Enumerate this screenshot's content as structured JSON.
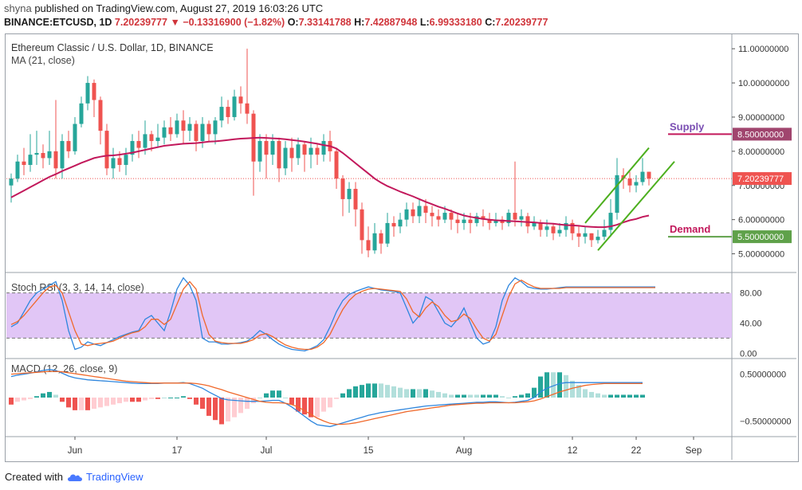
{
  "header": {
    "publisher": "shyna",
    "published_text": "published on TradingView.com, August 27, 2019 16:03:26 UTC",
    "symbol": "BINANCE:ETCUSD, 1D",
    "last_price": "7.20239777",
    "change_symbol": "▼",
    "change_text": "−0.13316900 (−1.82%)",
    "open_label": "O:",
    "open": "7.33141788",
    "high_label": "H:",
    "high": "7.42887948",
    "low_label": "L:",
    "low": "6.99333180",
    "close_label": "C:",
    "close": "7.20239777"
  },
  "footer": {
    "created_with": "Created with",
    "brand": "TradingView"
  },
  "colors": {
    "up": "#26a69a",
    "down": "#ef5350",
    "ma": "#c2185b",
    "channel": "#4caf1e",
    "supply": "#7b4fb3",
    "demand": "#c2185b",
    "supply_tag": "#a0456e",
    "demand_tag": "#5fa14a",
    "last_tag": "#ef5350",
    "rsi_k": "#2e86de",
    "rsi_d": "#f0682a",
    "rsi_band": "#e1c6f6",
    "macd_line": "#2e86de",
    "signal_line": "#f0682a",
    "hist_up_strong": "#26a69a",
    "hist_up_weak": "#b2dfdb",
    "hist_down_strong": "#ef5350",
    "hist_down_weak": "#ffcdd2"
  },
  "chart_data": [
    {
      "type": "candlestick",
      "title": "Ethereum Classic / U.S. Dollar, 1D, BINANCE",
      "indicator": "MA (21, close)",
      "y_ticks": [
        "5.00000000",
        "6.00000000",
        "7.00000000",
        "8.00000000",
        "9.00000000",
        "10.00000000",
        "11.00000000"
      ],
      "ylim": [
        4.5,
        11.4
      ],
      "last_price_tag": "7.20239777",
      "candles": [
        [
          7.0,
          7.2,
          6.5,
          7.35
        ],
        [
          7.2,
          7.7,
          7.1,
          7.9
        ],
        [
          7.7,
          7.6,
          7.3,
          8.1
        ],
        [
          7.6,
          7.9,
          7.4,
          8.5
        ],
        [
          7.9,
          7.95,
          7.6,
          8.6
        ],
        [
          7.95,
          7.8,
          7.5,
          8.2
        ],
        [
          7.8,
          8.0,
          7.6,
          8.6
        ],
        [
          8.0,
          7.5,
          7.2,
          9.5
        ],
        [
          7.5,
          8.3,
          7.2,
          8.5
        ],
        [
          8.3,
          8.0,
          7.8,
          8.6
        ],
        [
          8.0,
          8.8,
          7.9,
          9.0
        ],
        [
          8.8,
          9.4,
          8.7,
          9.6
        ],
        [
          9.4,
          10.0,
          9.2,
          10.2
        ],
        [
          10.0,
          9.5,
          9.0,
          10.1
        ],
        [
          9.5,
          8.6,
          8.2,
          9.6
        ],
        [
          8.6,
          7.5,
          7.3,
          8.8
        ],
        [
          7.5,
          7.8,
          7.2,
          8.1
        ],
        [
          7.8,
          7.6,
          7.4,
          8.0
        ],
        [
          7.6,
          7.9,
          7.3,
          8.1
        ],
        [
          7.9,
          8.3,
          7.7,
          8.5
        ],
        [
          8.3,
          8.1,
          7.8,
          8.6
        ],
        [
          8.1,
          8.5,
          7.9,
          8.9
        ],
        [
          8.5,
          8.3,
          8.0,
          8.6
        ],
        [
          8.3,
          8.4,
          8.1,
          8.8
        ],
        [
          8.4,
          8.7,
          8.2,
          8.9
        ],
        [
          8.7,
          8.5,
          8.3,
          9.0
        ],
        [
          8.5,
          8.9,
          8.4,
          9.1
        ],
        [
          8.9,
          8.6,
          8.2,
          9.2
        ],
        [
          8.6,
          8.8,
          8.3,
          9.0
        ],
        [
          8.8,
          8.3,
          8.0,
          8.9
        ],
        [
          8.3,
          8.8,
          8.1,
          9.0
        ],
        [
          8.8,
          8.5,
          8.3,
          8.9
        ],
        [
          8.5,
          8.9,
          8.2,
          9.0
        ],
        [
          8.9,
          9.3,
          8.7,
          9.6
        ],
        [
          9.3,
          9.0,
          8.8,
          9.5
        ],
        [
          9.0,
          9.6,
          8.9,
          9.8
        ],
        [
          9.6,
          9.4,
          9.1,
          9.9
        ],
        [
          9.4,
          9.1,
          8.8,
          11.0
        ],
        [
          9.1,
          7.7,
          6.7,
          9.2
        ],
        [
          7.7,
          8.3,
          7.4,
          8.5
        ],
        [
          8.3,
          7.9,
          7.2,
          8.5
        ],
        [
          7.9,
          8.3,
          7.6,
          8.5
        ],
        [
          8.3,
          7.5,
          7.1,
          8.4
        ],
        [
          7.5,
          8.1,
          7.3,
          8.3
        ],
        [
          8.1,
          7.8,
          7.4,
          8.4
        ],
        [
          7.8,
          8.2,
          7.6,
          8.4
        ],
        [
          8.2,
          7.9,
          7.4,
          8.3
        ],
        [
          7.9,
          8.1,
          7.5,
          8.4
        ],
        [
          8.1,
          7.9,
          7.6,
          8.2
        ],
        [
          7.9,
          8.3,
          7.7,
          8.5
        ],
        [
          8.3,
          8.0,
          7.7,
          8.6
        ],
        [
          8.0,
          7.2,
          6.9,
          8.1
        ],
        [
          7.2,
          6.6,
          6.1,
          7.3
        ],
        [
          6.6,
          6.9,
          6.2,
          7.1
        ],
        [
          6.9,
          6.3,
          5.8,
          7.1
        ],
        [
          6.3,
          5.4,
          5.0,
          6.5
        ],
        [
          5.4,
          5.1,
          4.9,
          5.8
        ],
        [
          5.1,
          5.6,
          5.0,
          5.9
        ],
        [
          5.6,
          5.3,
          5.0,
          5.7
        ],
        [
          5.3,
          5.9,
          5.2,
          6.2
        ],
        [
          5.9,
          5.8,
          5.5,
          6.1
        ],
        [
          5.8,
          6.0,
          5.6,
          6.2
        ],
        [
          6.0,
          6.3,
          5.8,
          6.5
        ],
        [
          6.3,
          6.1,
          5.9,
          6.5
        ],
        [
          6.1,
          6.4,
          5.9,
          6.6
        ],
        [
          6.4,
          6.2,
          5.9,
          6.6
        ],
        [
          6.2,
          6.1,
          5.8,
          6.4
        ],
        [
          6.1,
          6.0,
          5.8,
          6.3
        ],
        [
          6.0,
          6.2,
          5.9,
          6.4
        ],
        [
          6.2,
          6.0,
          5.7,
          6.3
        ],
        [
          6.0,
          5.9,
          5.6,
          6.2
        ],
        [
          5.9,
          6.0,
          5.7,
          6.2
        ],
        [
          6.0,
          5.9,
          5.6,
          6.2
        ],
        [
          5.9,
          6.1,
          5.8,
          6.2
        ],
        [
          6.1,
          6.0,
          5.8,
          6.3
        ],
        [
          6.0,
          5.9,
          5.7,
          6.2
        ],
        [
          5.9,
          6.0,
          5.8,
          6.2
        ],
        [
          6.0,
          5.9,
          5.7,
          6.1
        ],
        [
          5.9,
          6.2,
          5.8,
          6.3
        ],
        [
          6.2,
          6.0,
          5.8,
          7.7
        ],
        [
          6.0,
          6.1,
          5.8,
          6.3
        ],
        [
          6.1,
          5.8,
          5.6,
          6.2
        ],
        [
          5.8,
          5.9,
          5.7,
          6.1
        ],
        [
          5.9,
          5.7,
          5.5,
          6.0
        ],
        [
          5.7,
          5.8,
          5.5,
          6.0
        ],
        [
          5.8,
          5.6,
          5.4,
          5.9
        ],
        [
          5.6,
          5.7,
          5.5,
          5.9
        ],
        [
          5.7,
          5.9,
          5.5,
          6.1
        ],
        [
          5.9,
          5.6,
          5.4,
          6.0
        ],
        [
          5.6,
          5.5,
          5.2,
          5.8
        ],
        [
          5.5,
          5.6,
          5.3,
          5.8
        ],
        [
          5.6,
          5.4,
          5.2,
          5.6
        ],
        [
          5.4,
          5.5,
          5.3,
          5.7
        ],
        [
          5.5,
          5.7,
          5.4,
          6.0
        ],
        [
          5.7,
          6.2,
          5.5,
          6.6
        ],
        [
          6.2,
          7.3,
          6.0,
          7.8
        ],
        [
          7.3,
          7.2,
          6.9,
          7.5
        ],
        [
          7.2,
          7.0,
          6.8,
          7.4
        ],
        [
          7.0,
          7.1,
          6.8,
          7.3
        ],
        [
          7.1,
          7.4,
          7.0,
          7.8
        ],
        [
          7.4,
          7.2,
          7.0,
          7.4
        ]
      ],
      "ma21": [
        6.65,
        6.75,
        6.85,
        6.95,
        7.05,
        7.15,
        7.25,
        7.33,
        7.42,
        7.5,
        7.58,
        7.66,
        7.73,
        7.8,
        7.84,
        7.87,
        7.88,
        7.9,
        7.93,
        7.96,
        8.0,
        8.04,
        8.08,
        8.12,
        8.16,
        8.18,
        8.2,
        8.22,
        8.23,
        8.24,
        8.26,
        8.28,
        8.29,
        8.31,
        8.33,
        8.35,
        8.37,
        8.38,
        8.39,
        8.4,
        8.39,
        8.38,
        8.37,
        8.35,
        8.33,
        8.31,
        8.28,
        8.25,
        8.22,
        8.18,
        8.15,
        8.08,
        7.95,
        7.8,
        7.65,
        7.5,
        7.35,
        7.2,
        7.08,
        6.98,
        6.9,
        6.82,
        6.75,
        6.68,
        6.6,
        6.52,
        6.45,
        6.38,
        6.32,
        6.25,
        6.18,
        6.12,
        6.08,
        6.05,
        6.02,
        6.0,
        5.98,
        5.97,
        5.96,
        5.95,
        5.94,
        5.93,
        5.92,
        5.9,
        5.89,
        5.88,
        5.86,
        5.84,
        5.83,
        5.82,
        5.8,
        5.79,
        5.78,
        5.78,
        5.8,
        5.85,
        5.92,
        5.98,
        6.02,
        6.08,
        6.12
      ],
      "annotations": {
        "supply_label": "Supply",
        "supply_value": "8.50000000",
        "supply_level": 8.5,
        "demand_label": "Demand",
        "demand_value": "5.50000000",
        "demand_level": 5.5,
        "channel_upper": [
          [
            90,
            5.9
          ],
          [
            100,
            8.1
          ]
        ],
        "channel_lower": [
          [
            92,
            5.1
          ],
          [
            104,
            7.7
          ]
        ]
      }
    },
    {
      "type": "line",
      "title": "Stoch RSI (3, 3, 14, 14, close)",
      "y_ticks": [
        "0.00",
        "40.00",
        "80.00"
      ],
      "band": [
        20,
        80
      ],
      "ylim": [
        -5,
        105
      ],
      "series": [
        {
          "name": "K",
          "values": [
            35,
            40,
            55,
            70,
            80,
            85,
            90,
            95,
            70,
            30,
            5,
            8,
            15,
            12,
            10,
            14,
            18,
            22,
            25,
            28,
            30,
            45,
            50,
            40,
            30,
            55,
            85,
            100,
            90,
            70,
            20,
            15,
            15,
            12,
            12,
            13,
            14,
            16,
            22,
            30,
            25,
            18,
            12,
            8,
            5,
            4,
            3,
            6,
            10,
            18,
            35,
            55,
            70,
            78,
            82,
            85,
            88,
            86,
            84,
            83,
            82,
            80,
            60,
            40,
            50,
            75,
            70,
            55,
            40,
            35,
            45,
            60,
            40,
            20,
            12,
            15,
            35,
            70,
            90,
            100,
            95,
            88,
            86,
            85,
            85,
            86,
            87,
            88,
            88,
            88,
            88,
            88,
            88,
            88,
            88,
            88,
            88,
            88,
            88,
            88,
            88,
            88
          ]
        },
        {
          "name": "D",
          "values": [
            38,
            42,
            50,
            60,
            70,
            80,
            88,
            90,
            80,
            55,
            30,
            12,
            10,
            12,
            13,
            14,
            16,
            20,
            24,
            27,
            29,
            35,
            45,
            45,
            38,
            45,
            65,
            85,
            95,
            85,
            50,
            25,
            16,
            14,
            13,
            13,
            13,
            15,
            18,
            24,
            26,
            22,
            16,
            11,
            8,
            6,
            5,
            5,
            8,
            14,
            25,
            42,
            58,
            70,
            78,
            82,
            85,
            86,
            85,
            84,
            83,
            82,
            72,
            55,
            48,
            60,
            68,
            62,
            50,
            42,
            44,
            52,
            46,
            32,
            20,
            16,
            25,
            50,
            75,
            92,
            97,
            92,
            88,
            86,
            86,
            86,
            86,
            87,
            87,
            87,
            87,
            87,
            87,
            87,
            87,
            87,
            87,
            87,
            87,
            87,
            87,
            87
          ]
        }
      ]
    },
    {
      "type": "line",
      "title": "MACD (12, 26, close, 9)",
      "y_ticks": [
        "0.50000000",
        "−0.50000000"
      ],
      "ylim": [
        -0.8,
        0.8
      ],
      "series": [
        {
          "name": "MACD",
          "values": [
            0.45,
            0.48,
            0.5,
            0.52,
            0.55,
            0.58,
            0.6,
            0.58,
            0.52,
            0.46,
            0.42,
            0.4,
            0.38,
            0.37,
            0.36,
            0.35,
            0.34,
            0.33,
            0.32,
            0.31,
            0.3,
            0.3,
            0.3,
            0.3,
            0.31,
            0.31,
            0.31,
            0.32,
            0.3,
            0.25,
            0.2,
            0.12,
            0.05,
            -0.02,
            -0.05,
            -0.06,
            -0.07,
            -0.08,
            -0.08,
            -0.08,
            -0.07,
            -0.06,
            -0.06,
            -0.12,
            -0.2,
            -0.3,
            -0.4,
            -0.5,
            -0.58,
            -0.6,
            -0.62,
            -0.58,
            -0.54,
            -0.5,
            -0.46,
            -0.42,
            -0.38,
            -0.35,
            -0.32,
            -0.3,
            -0.28,
            -0.26,
            -0.24,
            -0.22,
            -0.2,
            -0.18,
            -0.17,
            -0.16,
            -0.15,
            -0.14,
            -0.13,
            -0.12,
            -0.11,
            -0.1,
            -0.1,
            -0.09,
            -0.09,
            -0.1,
            -0.11,
            -0.1,
            -0.08,
            -0.06,
            0.0,
            0.12,
            0.2,
            0.25,
            0.3,
            0.32,
            0.32,
            0.32,
            0.32,
            0.32,
            0.32,
            0.32,
            0.32,
            0.32,
            0.32,
            0.32,
            0.32,
            0.32
          ]
        },
        {
          "name": "Signal",
          "values": [
            0.5,
            0.51,
            0.52,
            0.53,
            0.54,
            0.55,
            0.56,
            0.56,
            0.55,
            0.53,
            0.51,
            0.49,
            0.47,
            0.45,
            0.43,
            0.41,
            0.39,
            0.37,
            0.35,
            0.34,
            0.33,
            0.32,
            0.31,
            0.31,
            0.31,
            0.31,
            0.31,
            0.31,
            0.31,
            0.3,
            0.28,
            0.25,
            0.21,
            0.17,
            0.12,
            0.08,
            0.04,
            0.0,
            -0.04,
            -0.08,
            -0.1,
            -0.11,
            -0.11,
            -0.12,
            -0.15,
            -0.2,
            -0.28,
            -0.36,
            -0.44,
            -0.5,
            -0.55,
            -0.57,
            -0.57,
            -0.56,
            -0.54,
            -0.51,
            -0.48,
            -0.45,
            -0.42,
            -0.39,
            -0.36,
            -0.33,
            -0.3,
            -0.28,
            -0.26,
            -0.24,
            -0.22,
            -0.2,
            -0.18,
            -0.16,
            -0.15,
            -0.14,
            -0.13,
            -0.12,
            -0.12,
            -0.11,
            -0.11,
            -0.11,
            -0.11,
            -0.11,
            -0.1,
            -0.09,
            -0.07,
            -0.03,
            0.02,
            0.07,
            0.12,
            0.16,
            0.2,
            0.23,
            0.26,
            0.28,
            0.29,
            0.3,
            0.3,
            0.3,
            0.3,
            0.3,
            0.3,
            0.3
          ]
        }
      ]
    },
    {
      "type": "time_axis",
      "labels": [
        [
          "Jun",
          10
        ],
        [
          "17",
          26
        ],
        [
          "Jul",
          40
        ],
        [
          "15",
          56
        ],
        [
          "Aug",
          71
        ],
        [
          "12",
          88
        ],
        [
          "22",
          98
        ],
        [
          "Sep",
          107
        ]
      ]
    }
  ]
}
